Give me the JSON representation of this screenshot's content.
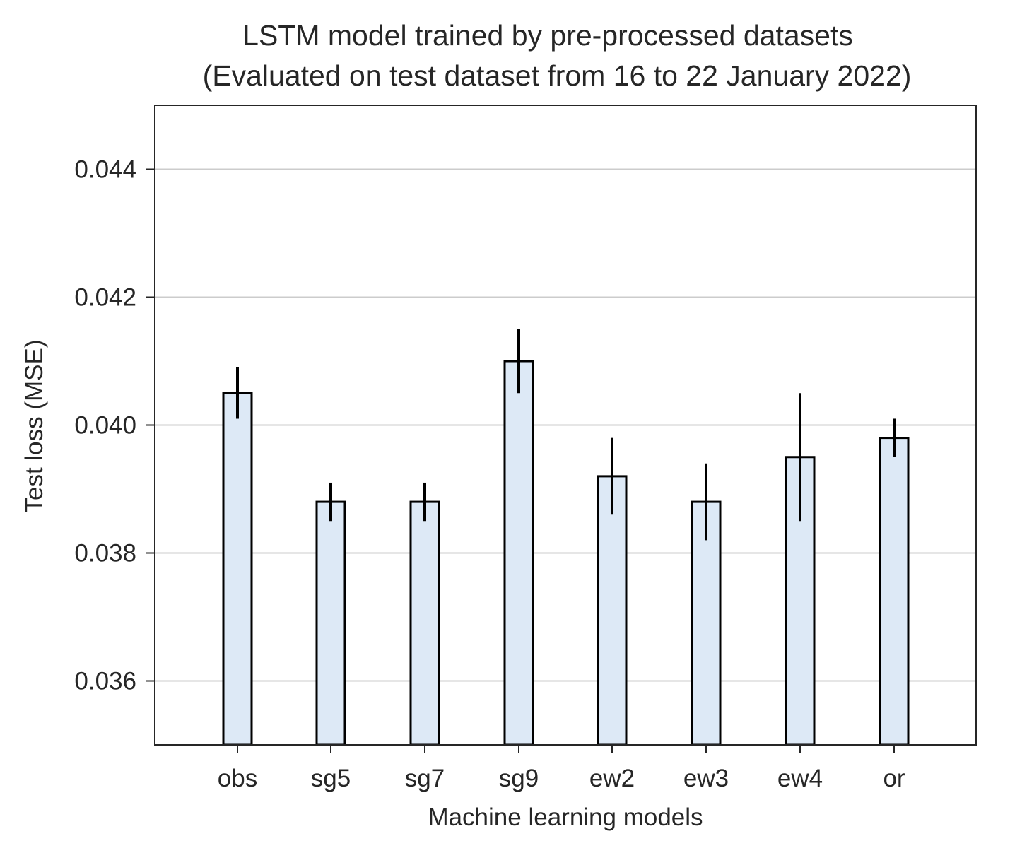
{
  "chart_data": {
    "type": "bar",
    "title_line1": "LSTM model trained by pre-processed datasets",
    "title_line2": "(Evaluated on test dataset from 16 to 22 January 2022)",
    "xlabel": "Machine learning models",
    "ylabel": "Test loss (MSE)",
    "categories": [
      "obs",
      "sg5",
      "sg7",
      "sg9",
      "ew2",
      "ew3",
      "ew4",
      "or"
    ],
    "values": [
      0.0405,
      0.0388,
      0.0388,
      0.041,
      0.0392,
      0.0388,
      0.0395,
      0.0398
    ],
    "errors": [
      0.0004,
      0.0003,
      0.0003,
      0.0005,
      0.0006,
      0.0006,
      0.001,
      0.0003
    ],
    "ylim": [
      0.035,
      0.045
    ],
    "yticks": [
      0.036,
      0.038,
      0.04,
      0.042,
      0.044
    ],
    "ytick_labels": [
      "0.036",
      "0.038",
      "0.040",
      "0.042",
      "0.044"
    ],
    "grid": "y",
    "bar_fill": "#dde9f6",
    "bar_edge": "#000000",
    "error_color": "#000000",
    "grid_color": "#cccccc"
  }
}
